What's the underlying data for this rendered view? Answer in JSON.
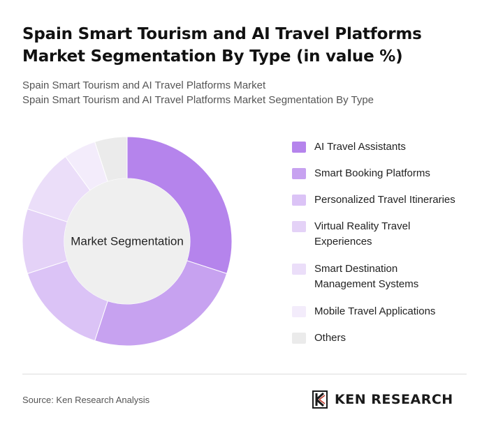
{
  "title": "Spain Smart Tourism and AI Travel Platforms Market Segmentation By Type (in value %)",
  "subtitle_line1": "Spain Smart Tourism and AI Travel Platforms Market",
  "subtitle_line2": "Spain Smart Tourism and AI Travel Platforms Market Segmentation By Type",
  "source": "Source: Ken Research Analysis",
  "logo": {
    "text": "KEN RESEARCH",
    "icon": "ken-research-k-icon"
  },
  "chart_data": {
    "type": "pie",
    "variant": "donut",
    "center_label": "Market Segmentation",
    "legend_position": "right",
    "categories": [
      "AI Travel Assistants",
      "Smart Booking Platforms",
      "Personalized Travel Itineraries",
      "Virtual Reality Travel Experiences",
      "Smart Destination Management Systems",
      "Mobile Travel Applications",
      "Others"
    ],
    "legend_labels": [
      [
        "AI Travel Assistants"
      ],
      [
        "Smart Booking Platforms"
      ],
      [
        "Personalized Travel Itineraries"
      ],
      [
        "Virtual Reality Travel",
        "Experiences"
      ],
      [
        "Smart Destination",
        "Management Systems"
      ],
      [
        "Mobile Travel Applications"
      ],
      [
        "Others"
      ]
    ],
    "values": [
      30,
      25,
      15,
      10,
      10,
      5,
      5
    ],
    "colors": [
      "#b584ec",
      "#c7a2f0",
      "#dbc3f6",
      "#e4d2f7",
      "#ebdef9",
      "#f3ecfb",
      "#ebebeb"
    ]
  }
}
